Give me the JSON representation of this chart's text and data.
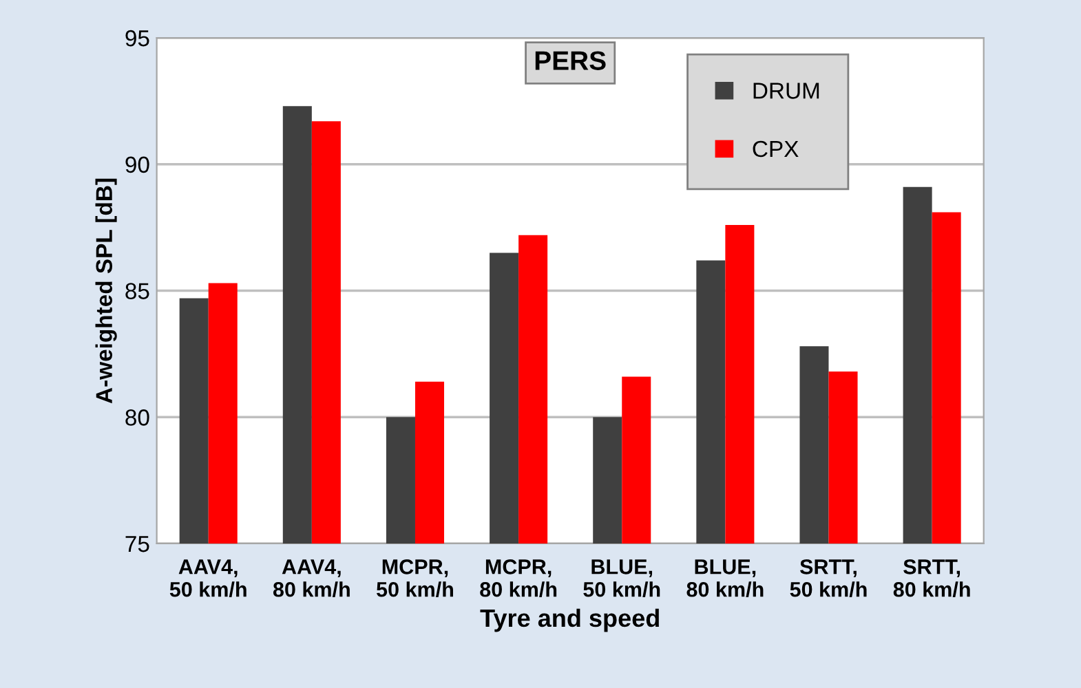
{
  "chart_data": {
    "type": "bar",
    "title": "PERS",
    "xlabel": "Tyre and speed",
    "ylabel": "A-weighted SPL [dB]",
    "categories": [
      "AAV4,\n50 km/h",
      "AAV4,\n80 km/h",
      "MCPR,\n50 km/h",
      "MCPR,\n80 km/h",
      "BLUE,\n50 km/h",
      "BLUE,\n80 km/h",
      "SRTT,\n50 km/h",
      "SRTT,\n80 km/h"
    ],
    "series": [
      {
        "name": "DRUM",
        "color": "#404040",
        "values": [
          84.7,
          92.3,
          80.0,
          86.5,
          80.0,
          86.2,
          82.8,
          89.1
        ]
      },
      {
        "name": "CPX",
        "color": "#ff0000",
        "values": [
          85.3,
          91.7,
          81.4,
          87.2,
          81.6,
          87.6,
          81.8,
          88.1
        ]
      }
    ],
    "ylim": [
      75,
      95
    ],
    "yticks": [
      75,
      80,
      85,
      90,
      95
    ],
    "grid": "y",
    "legend": "top right"
  }
}
